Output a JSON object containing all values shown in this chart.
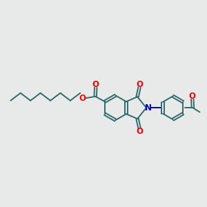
{
  "background_color": "#e8eaea",
  "bond_color": "#2d6b6b",
  "o_color": "#ff0000",
  "n_color": "#0000cc",
  "line_width": 1.4,
  "font_size": 8.5,
  "fig_size": [
    3.0,
    3.0
  ],
  "dpi": 100,
  "xlim": [
    -0.15,
    1.05
  ],
  "ylim": [
    0.25,
    0.85
  ]
}
